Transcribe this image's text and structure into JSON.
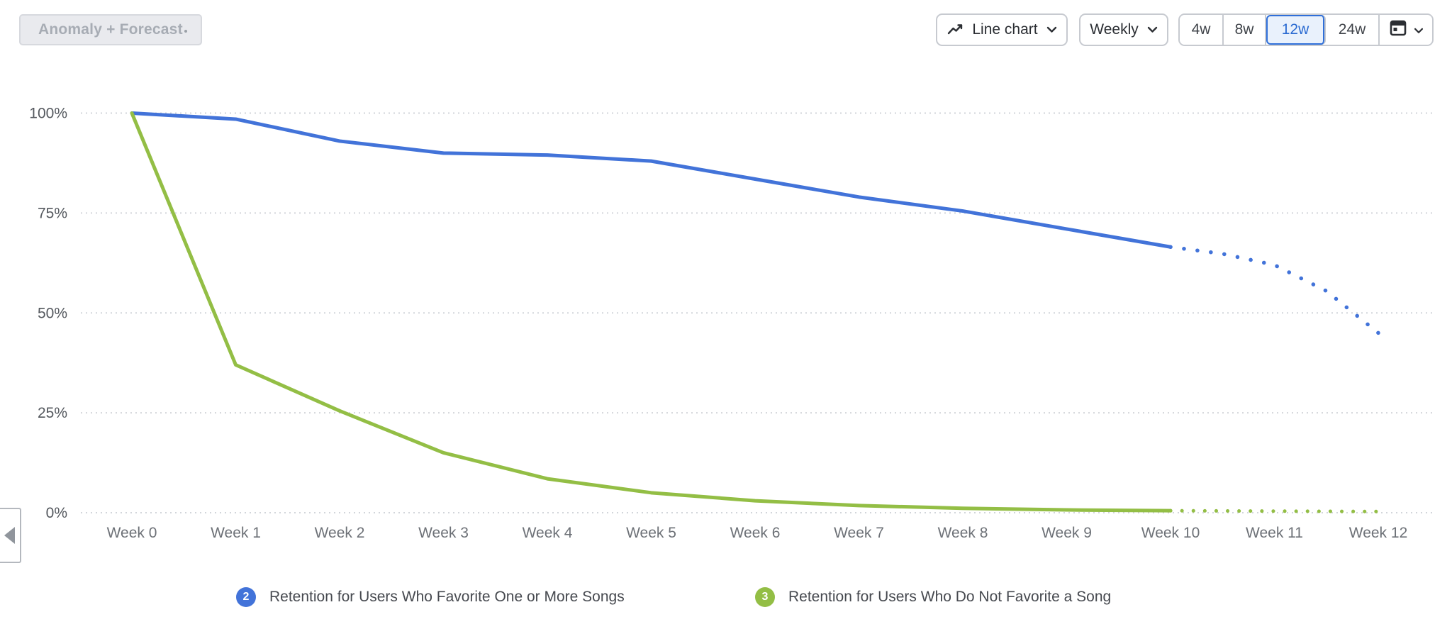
{
  "toolbar": {
    "anomaly_button_label": "Anomaly + Forecast",
    "chart_type": {
      "label": "Line chart"
    },
    "granularity": {
      "label": "Weekly"
    },
    "range_buttons": [
      {
        "label": "4w",
        "selected": false
      },
      {
        "label": "8w",
        "selected": false
      },
      {
        "label": "12w",
        "selected": true
      },
      {
        "label": "24w",
        "selected": false
      }
    ]
  },
  "colors": {
    "series_blue": "#4273d9",
    "series_green": "#93be45",
    "selected_range_text": "#2a6ad1",
    "selected_range_bg": "#e9f1fc",
    "gridline": "#d2d5da"
  },
  "chart_data": {
    "type": "line",
    "title": "",
    "xlabel": "",
    "ylabel": "",
    "x_categories": [
      "Week 0",
      "Week 1",
      "Week 2",
      "Week 3",
      "Week 4",
      "Week 5",
      "Week 6",
      "Week 7",
      "Week 8",
      "Week 9",
      "Week 10",
      "Week 11",
      "Week 12"
    ],
    "y_ticks": [
      "0%",
      "25%",
      "50%",
      "75%",
      "100%"
    ],
    "ylim": [
      0,
      100
    ],
    "grid": "horizontal-dotted",
    "legend_position": "bottom",
    "forecast_note": "dotted segments after Week 10 are forecast",
    "series": [
      {
        "name": "Retention for Users Who Favorite One or More Songs",
        "badge": "2",
        "color": "#4273d9",
        "values_pct": [
          100,
          98.5,
          93,
          90,
          89.5,
          88,
          83.5,
          79,
          75.5,
          71,
          66.5
        ],
        "forecast_weeks": [
          10,
          10.5,
          11,
          11.5,
          12
        ],
        "forecast_values_pct": [
          66.5,
          64.8,
          62,
          55.5,
          45
        ]
      },
      {
        "name": "Retention for Users Who Do Not Favorite a Song",
        "badge": "3",
        "color": "#93be45",
        "values_pct": [
          100,
          37,
          25.5,
          15,
          8.5,
          5,
          3,
          1.8,
          1.1,
          0.7,
          0.5
        ],
        "forecast_weeks": [
          10,
          11,
          12
        ],
        "forecast_values_pct": [
          0.5,
          0.4,
          0.3
        ]
      }
    ]
  }
}
